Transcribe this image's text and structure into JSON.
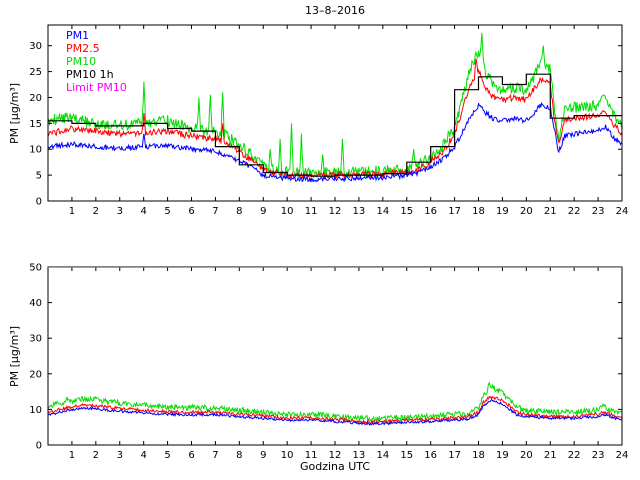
{
  "title": "13–8–2016",
  "xlabel": "Godzina UTC",
  "chart_data": [
    {
      "type": "line",
      "title": "13–8–2016",
      "xlabel": "",
      "ylabel": "PM [µg/m³]",
      "xlim": [
        0,
        24
      ],
      "ylim": [
        0,
        34
      ],
      "xticks": [
        1,
        2,
        3,
        4,
        5,
        6,
        7,
        8,
        9,
        10,
        11,
        12,
        13,
        14,
        15,
        16,
        17,
        18,
        19,
        20,
        21,
        22,
        23,
        24
      ],
      "yticks": [
        0,
        5,
        10,
        15,
        20,
        25,
        30
      ],
      "grid": false,
      "legend_position": "top-left-text-only",
      "x_anchors": [
        0,
        0.5,
        1,
        1.5,
        2,
        3,
        4,
        5,
        6,
        7,
        7.5,
        8,
        8.5,
        9,
        9.5,
        10,
        11,
        12,
        13,
        14,
        15,
        15.5,
        16,
        16.5,
        17,
        17.3,
        17.6,
        18,
        18.3,
        18.6,
        19,
        19.5,
        20,
        20.3,
        20.6,
        21,
        21.2,
        21.35,
        21.6,
        22,
        22.5,
        23,
        23.3,
        23.6,
        24
      ],
      "series": [
        {
          "name": "PM1",
          "color": "#0000ff",
          "style": "noisy",
          "noise": 0.5,
          "y": [
            10.2,
            10.8,
            11,
            10.8,
            10.5,
            10.2,
            10.5,
            10.8,
            10,
            9.6,
            8.8,
            7.8,
            6.5,
            5,
            4.6,
            4.4,
            4.2,
            4.4,
            4.4,
            4.5,
            5,
            5.5,
            6.5,
            8,
            10.5,
            13,
            16,
            18.5,
            17,
            16,
            15.5,
            16,
            15.5,
            17,
            18.5,
            18,
            13,
            9.5,
            12.5,
            13,
            13.2,
            13.5,
            14.5,
            12.5,
            11
          ],
          "spikes": [
            [
              4,
              13
            ]
          ]
        },
        {
          "name": "PM2.5",
          "color": "#ff0000",
          "style": "noisy",
          "noise": 0.6,
          "y": [
            12.8,
            13.5,
            14,
            13.8,
            13.5,
            13,
            13.2,
            13.5,
            12.5,
            12,
            11,
            9.5,
            8,
            6,
            5.4,
            5.1,
            4.8,
            5.1,
            5.1,
            5.2,
            5.6,
            6.2,
            7.5,
            9.5,
            13,
            17,
            22,
            25.5,
            22,
            20,
            19.5,
            20,
            19.5,
            21.5,
            23.5,
            22.5,
            15,
            11,
            15.5,
            16,
            16.2,
            16.5,
            17.5,
            15,
            13
          ],
          "spikes": [
            [
              4,
              17
            ],
            [
              7.3,
              15
            ],
            [
              17.9,
              27.5
            ]
          ]
        },
        {
          "name": "PM10",
          "color": "#00dd00",
          "style": "noisy",
          "noise": 1.1,
          "y": [
            15.3,
            16,
            16,
            15.5,
            15,
            14.5,
            15.2,
            15.5,
            14,
            13.5,
            12.5,
            10.8,
            9,
            6.8,
            6,
            5.6,
            5.3,
            5.6,
            5.6,
            5.8,
            6.2,
            7,
            8.5,
            10.5,
            14.5,
            19,
            25,
            29,
            25,
            22.5,
            21.5,
            22,
            21.5,
            24,
            26.5,
            25.5,
            17,
            12,
            17.5,
            18,
            18,
            18.5,
            20,
            17,
            14
          ],
          "spikes": [
            [
              4,
              23
            ],
            [
              6.3,
              20
            ],
            [
              6.8,
              20.5
            ],
            [
              7.3,
              21
            ],
            [
              9.3,
              10
            ],
            [
              9.7,
              12
            ],
            [
              10.2,
              15
            ],
            [
              10.6,
              13
            ],
            [
              11.5,
              9
            ],
            [
              12.3,
              12
            ],
            [
              15.3,
              10
            ],
            [
              18.15,
              32.5
            ],
            [
              20.7,
              30
            ],
            [
              23.25,
              20.5
            ]
          ]
        },
        {
          "name": "PM10 1h",
          "color": "#000000",
          "style": "stairs",
          "values": [
            15.5,
            15,
            14.5,
            14.5,
            15,
            14,
            13.5,
            10.5,
            7,
            5.5,
            5,
            4.8,
            5,
            5,
            5.3,
            7.5,
            10.5,
            21.5,
            24,
            22.5,
            24.5,
            16,
            16.5,
            16.5
          ]
        },
        {
          "name": "Limit PM10",
          "color": "#ff00ff",
          "style": "hline",
          "value": 50
        }
      ]
    },
    {
      "type": "line",
      "title": "",
      "xlabel": "Godzina UTC",
      "ylabel": "PM [µg/m³]",
      "xlim": [
        0,
        24
      ],
      "ylim": [
        0,
        50
      ],
      "xticks": [
        1,
        2,
        3,
        4,
        5,
        6,
        7,
        8,
        9,
        10,
        11,
        12,
        13,
        14,
        15,
        16,
        17,
        18,
        19,
        20,
        21,
        22,
        23,
        24
      ],
      "yticks": [
        0,
        10,
        20,
        30,
        40,
        50
      ],
      "grid": false,
      "x_anchors": [
        0,
        0.5,
        1,
        1.5,
        2,
        2.5,
        3,
        4,
        5,
        6,
        7,
        8,
        9,
        10,
        11,
        12,
        13,
        13.5,
        14,
        15,
        16,
        17,
        17.5,
        18,
        18.2,
        18.5,
        18.8,
        19,
        19.3,
        19.6,
        20,
        21,
        22,
        23,
        23.2,
        23.5,
        24
      ],
      "series": [
        {
          "name": "PM1",
          "color": "#0000ff",
          "style": "noisy",
          "noise": 0.35,
          "y": [
            8.3,
            9.3,
            10,
            10.3,
            10.2,
            9.8,
            9.5,
            9,
            8.6,
            8.5,
            8.5,
            8,
            7.5,
            7,
            7,
            6.6,
            6.1,
            6,
            6,
            6.4,
            6.6,
            7,
            7.2,
            8.5,
            11,
            12.5,
            12,
            11.5,
            10,
            8.5,
            8,
            7.5,
            7.5,
            8,
            8.6,
            8,
            7
          ]
        },
        {
          "name": "PM2.5",
          "color": "#ff0000",
          "style": "noisy",
          "noise": 0.45,
          "y": [
            9,
            10,
            10.8,
            11.2,
            11,
            10.6,
            10.3,
            9.8,
            9.3,
            9.2,
            9.2,
            8.7,
            8.2,
            7.6,
            7.6,
            7.2,
            6.6,
            6.5,
            6.5,
            6.9,
            7.2,
            7.6,
            7.8,
            9.2,
            12,
            13.5,
            13,
            12.5,
            11,
            9.2,
            8.6,
            8,
            8,
            8.6,
            9.3,
            8.6,
            7.5
          ]
        },
        {
          "name": "PM10",
          "color": "#00dd00",
          "style": "noisy",
          "noise": 0.8,
          "y": [
            10.5,
            11.8,
            12.5,
            13,
            12.8,
            12.2,
            11.8,
            11.2,
            10.7,
            10.5,
            10.4,
            9.8,
            9.2,
            8.6,
            8.6,
            8.1,
            7.5,
            7.4,
            7.4,
            7.8,
            8.1,
            8.6,
            8.9,
            10.5,
            14,
            16.5,
            15.5,
            14.5,
            12.5,
            10.5,
            9.8,
            9.2,
            9.2,
            9.8,
            10.8,
            9.9,
            8.5
          ],
          "spikes": [
            [
              0.8,
              13.5
            ],
            [
              18.45,
              17.5
            ],
            [
              23.2,
              11.5
            ]
          ]
        },
        {
          "name": "Limit PM10",
          "color": "#ff00ff",
          "style": "hline",
          "value": 50
        }
      ]
    }
  ]
}
